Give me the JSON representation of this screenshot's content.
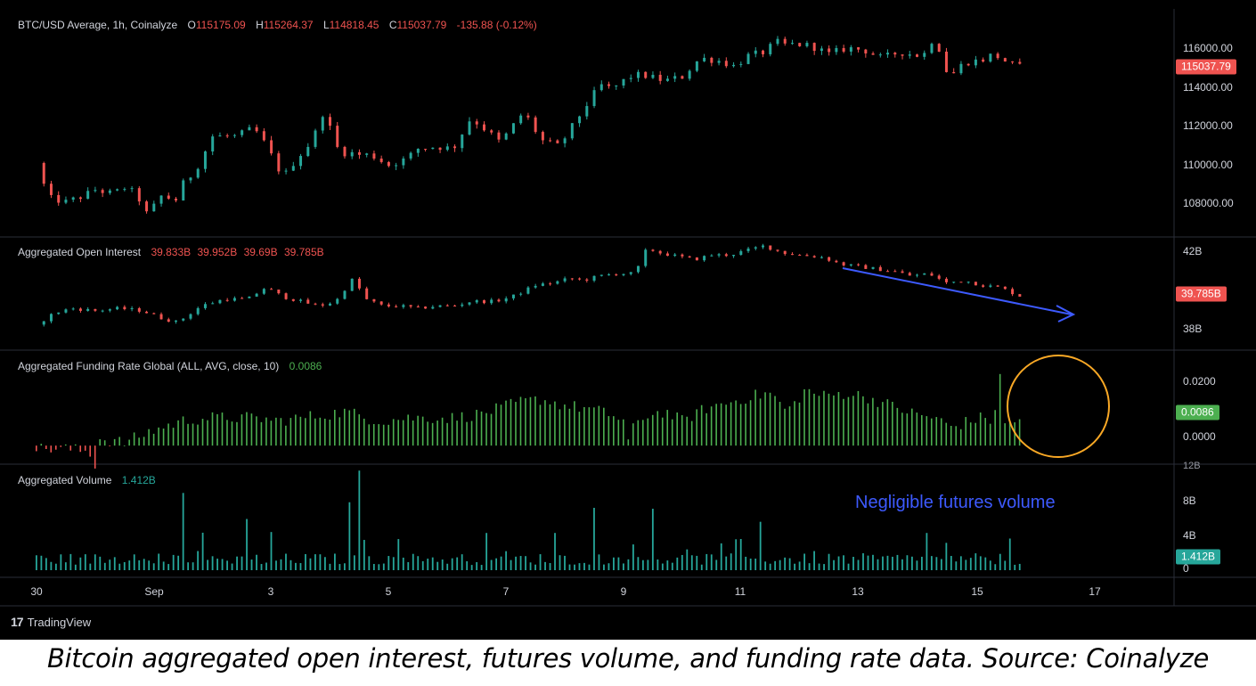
{
  "chart_data": [
    {
      "panel": "price",
      "type": "candlestick",
      "legend": {
        "title": "BTC/USD Average, 1h, Coinalyze",
        "open": "115175.09",
        "high": "115264.37",
        "low": "114818.45",
        "close": "115037.79",
        "change": "-135.88 (-0.12%)"
      },
      "y_ticks": [
        "116000.00",
        "114000.00",
        "112000.00",
        "110000.00",
        "108000.00"
      ],
      "y_tick_values": [
        116000,
        114000,
        112000,
        110000,
        108000
      ],
      "ylim": [
        106800,
        117900
      ],
      "last_value": "115037.79",
      "path_x_days": [
        0,
        0.2,
        0.5,
        0.8,
        1.0,
        1.3,
        1.5,
        1.7,
        1.9,
        2.1,
        2.4,
        2.5,
        2.7,
        3.0,
        3.4,
        3.7,
        3.9,
        4.2,
        4.4,
        4.7,
        4.9,
        5.1,
        5.3,
        5.4,
        5.5,
        5.7,
        6.0,
        6.3,
        6.5,
        6.8,
        7.1,
        7.4,
        7.7,
        7.9,
        8.3,
        8.6,
        8.9,
        9.2,
        9.6,
        9.8,
        10.1,
        10.3,
        10.7,
        11.0,
        11.3,
        11.6,
        11.9,
        12.1,
        12.4,
        12.6,
        12.8,
        12.9,
        13.2,
        13.5,
        13.8,
        14.1,
        14.4,
        14.7,
        15.1,
        15.3,
        15.5,
        15.6,
        15.8,
        16.1,
        16.3,
        16.6,
        16.8
      ],
      "path_values": [
        110400,
        108700,
        108500,
        108800,
        109100,
        108900,
        109200,
        108900,
        107800,
        108800,
        108600,
        109400,
        110000,
        111700,
        111700,
        112100,
        111300,
        109700,
        110500,
        111500,
        113000,
        111200,
        110800,
        110900,
        110800,
        110800,
        110300,
        110600,
        111100,
        111200,
        111100,
        112600,
        111900,
        111400,
        112900,
        111500,
        111200,
        112500,
        114200,
        114000,
        114600,
        114700,
        114400,
        114600,
        115500,
        115400,
        115100,
        115600,
        115800,
        116300,
        116100,
        116200,
        116100,
        115700,
        116000,
        115900,
        115500,
        115800,
        115600,
        116600,
        114900,
        114700,
        115300,
        115400,
        115700,
        115200,
        115037.79
      ]
    },
    {
      "panel": "open_interest",
      "type": "candlestick",
      "legend": {
        "title": "Aggregated Open Interest",
        "open": "39.833B",
        "high": "39.952B",
        "low": "39.69B",
        "close": "39.785B"
      },
      "y_ticks": [
        "42B",
        "38B"
      ],
      "y_tick_values": [
        42,
        38
      ],
      "ylim": [
        37.5,
        42.3
      ],
      "last_value": "39.785B",
      "path_x_days": [
        0,
        0.3,
        0.6,
        1.0,
        1.4,
        1.8,
        2.1,
        2.4,
        2.8,
        3.2,
        3.6,
        3.9,
        4.2,
        4.5,
        4.8,
        5.1,
        5.3,
        5.4,
        5.6,
        5.9,
        6.2,
        6.5,
        6.8,
        7.1,
        7.4,
        7.8,
        8.1,
        8.5,
        8.8,
        9.1,
        9.3,
        9.6,
        9.9,
        10.2,
        10.4,
        10.6,
        10.8,
        11.2,
        11.5,
        11.8,
        12.1,
        12.4,
        12.7,
        13.0,
        13.4,
        13.7,
        14.0,
        14.3,
        14.6,
        14.9,
        15.2,
        15.5,
        15.8,
        16.1,
        16.4,
        16.6,
        16.8
      ],
      "path_values": [
        38.6,
        39.1,
        39.3,
        39.2,
        39.3,
        39.2,
        38.9,
        38.7,
        39.4,
        39.7,
        39.7,
        40.2,
        39.8,
        39.6,
        39.4,
        39.6,
        40.3,
        40.6,
        39.7,
        39.4,
        39.4,
        39.3,
        39.4,
        39.4,
        39.6,
        39.6,
        39.8,
        40.3,
        40.4,
        40.6,
        40.5,
        40.7,
        40.8,
        40.8,
        41.9,
        41.7,
        41.6,
        41.4,
        41.6,
        41.6,
        41.8,
        42.0,
        41.7,
        41.6,
        41.5,
        41.2,
        41.1,
        41.0,
        40.9,
        40.7,
        40.8,
        40.4,
        40.5,
        40.3,
        40.2,
        40.0,
        39.785
      ]
    },
    {
      "panel": "funding_rate",
      "type": "bar",
      "legend": {
        "title": "Aggregated Funding Rate Global (ALL, AVG, close, 10)",
        "value": "0.0086"
      },
      "y_ticks": [
        "0.0200",
        "0.0000"
      ],
      "y_tick_values": [
        0.02,
        0.0
      ],
      "ylim": [
        -0.006,
        0.03
      ],
      "last_value": "0.0086",
      "path_x_days": [
        0,
        0.5,
        0.9,
        1.0,
        1.05,
        1.1,
        1.5,
        2.0,
        2.5,
        2.9,
        3.3,
        3.7,
        4.1,
        4.5,
        4.9,
        5.3,
        5.6,
        5.9,
        6.3,
        6.7,
        7.1,
        7.5,
        7.9,
        8.2,
        8.6,
        9.0,
        9.4,
        9.8,
        10.0,
        10.05,
        10.1,
        10.4,
        10.7,
        11.0,
        11.4,
        11.8,
        12.2,
        12.5,
        12.8,
        13.1,
        13.4,
        13.8,
        14.1,
        14.4,
        14.7,
        15.0,
        15.3,
        15.6,
        15.9,
        16.1,
        16.3,
        16.45,
        16.5,
        16.6,
        16.8
      ],
      "path_values": [
        -0.001,
        -0.001,
        -0.002,
        -0.006,
        0.003,
        0.002,
        0.001,
        0.005,
        0.008,
        0.009,
        0.009,
        0.009,
        0.008,
        0.009,
        0.01,
        0.011,
        0.009,
        0.008,
        0.009,
        0.009,
        0.009,
        0.01,
        0.012,
        0.014,
        0.015,
        0.013,
        0.012,
        0.01,
        0.008,
        -0.003,
        0.004,
        0.01,
        0.011,
        0.008,
        0.012,
        0.014,
        0.016,
        0.017,
        0.011,
        0.018,
        0.016,
        0.017,
        0.016,
        0.014,
        0.012,
        0.01,
        0.009,
        0.006,
        0.008,
        0.009,
        0.008,
        0.026,
        0.007,
        0.008,
        0.0086
      ]
    },
    {
      "panel": "volume",
      "type": "bar",
      "legend": {
        "title": "Aggregated Volume",
        "value": "1.412B"
      },
      "y_ticks": [
        "12B",
        "8B",
        "4B",
        "0"
      ],
      "y_tick_values": [
        12,
        8,
        4,
        0
      ],
      "ylim": [
        0,
        12
      ],
      "last_value": "1.412B",
      "spikes_x_days": [
        2.5,
        3.6,
        4.0,
        5.3,
        5.5,
        7.7,
        8.8,
        9.5,
        10.5,
        12.3,
        15.2,
        16.6
      ],
      "spikes_values": [
        8.3,
        5.5,
        4.1,
        7.3,
        10.7,
        4.0,
        4.0,
        6.7,
        6.6,
        5.2,
        4.0,
        3.4
      ],
      "base_value": 1.4
    }
  ],
  "x_axis": {
    "ticks": [
      "30",
      "Sep",
      "3",
      "5",
      "7",
      "9",
      "11",
      "13",
      "15",
      "17"
    ],
    "tick_days": [
      0,
      2,
      4,
      6,
      8,
      10,
      12,
      14,
      16,
      18
    ]
  },
  "annotation": "Negligible futures volume",
  "brand": "TradingView",
  "brand_mark": "17",
  "caption": "Bitcoin aggregated open interest, futures volume, and funding rate data. Source: Coinalyze",
  "colors": {
    "up": "#26a69a",
    "down": "#ef5350",
    "funding_pos": "#4caf50",
    "funding_neg": "#ef5350",
    "volume": "#26a69a",
    "trend_arrow": "#3d5afe",
    "highlight_circle": "#f9a825",
    "divider": "#2a2e39"
  }
}
